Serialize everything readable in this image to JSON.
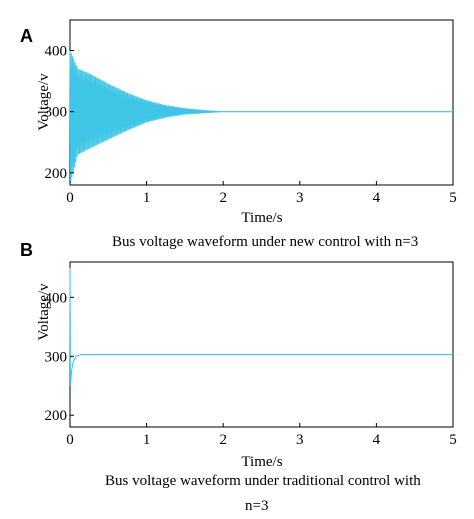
{
  "chart_data": [
    {
      "panel": "A",
      "type": "line",
      "xlabel": "Time/s",
      "ylabel": "Voltage/v",
      "caption_lines": [
        "Bus voltage waveform under new control with n=3"
      ],
      "xlim": [
        0,
        5
      ],
      "ylim": [
        180,
        450
      ],
      "xticks": [
        0,
        1,
        2,
        3,
        4,
        5
      ],
      "yticks": [
        200,
        300,
        400
      ],
      "grid": false,
      "line_color": "#3fc6e6",
      "series": [
        {
          "behavior": "decaying oscillation",
          "steady_value": 300,
          "initial_max": 400,
          "initial_min": 180,
          "settle_time": 1.8,
          "x": [
            0,
            0.1,
            0.25,
            0.5,
            0.75,
            1.0,
            1.25,
            1.5,
            1.75,
            2,
            3,
            4,
            5
          ],
          "upper_envelope": [
            400,
            370,
            362,
            345,
            330,
            318,
            310,
            305,
            302,
            300,
            300,
            300,
            300
          ],
          "lower_envelope": [
            180,
            230,
            240,
            255,
            270,
            283,
            291,
            296,
            298,
            300,
            300,
            300,
            300
          ]
        }
      ]
    },
    {
      "panel": "B",
      "type": "line",
      "xlabel": "Time/s",
      "ylabel": "Voltage/v",
      "caption_lines": [
        "Bus voltage waveform under traditional control with",
        "n=3"
      ],
      "xlim": [
        0,
        5
      ],
      "ylim": [
        180,
        460
      ],
      "xticks": [
        0,
        1,
        2,
        3,
        4,
        5
      ],
      "yticks": [
        200,
        300,
        400
      ],
      "grid": false,
      "line_color": "#3fc6e6",
      "series": [
        {
          "behavior": "step rise then flat",
          "x": [
            0,
            0.005,
            0.02,
            0.04,
            0.08,
            0.15,
            5
          ],
          "y": [
            450,
            250,
            275,
            290,
            300,
            303,
            303
          ]
        }
      ]
    }
  ]
}
